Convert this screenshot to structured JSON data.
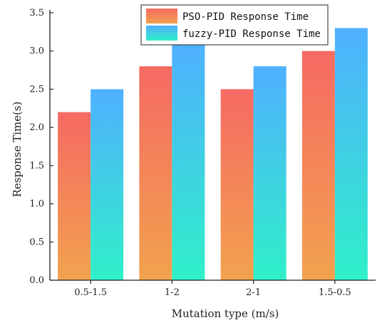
{
  "chart_data": {
    "type": "bar",
    "title": "",
    "xlabel": "Mutation type (m/s)",
    "ylabel": "Response Time(s)",
    "categories": [
      "0.5-1.5",
      "1-2",
      "2-1",
      "1.5-0.5"
    ],
    "series": [
      {
        "name": "PSO-PID Response Time",
        "values": [
          2.2,
          2.8,
          2.5,
          3.0
        ]
      },
      {
        "name": "fuzzy-PID Response Time",
        "values": [
          2.5,
          3.1,
          2.8,
          3.3
        ]
      }
    ],
    "ylim": [
      0,
      3.5
    ],
    "yticks": [
      "0.0",
      "0.5",
      "1.0",
      "1.5",
      "2.0",
      "2.5",
      "3.0",
      "3.5"
    ],
    "grid": false,
    "legend_position": "top-right",
    "colors": {
      "pso_top": "#f66a63",
      "pso_bottom": "#f2a24e",
      "fuzzy_top": "#4fb0ff",
      "fuzzy_bottom": "#2ff0c8"
    }
  }
}
